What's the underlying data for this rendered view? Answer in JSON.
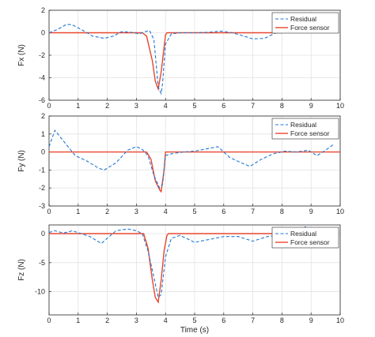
{
  "chart_data": [
    {
      "type": "line",
      "ylabel": "Fx (N)",
      "xlabel": "",
      "xlim": [
        0,
        10
      ],
      "ylim": [
        -6,
        2
      ],
      "xticks": [
        0,
        1,
        2,
        3,
        4,
        5,
        6,
        7,
        8,
        9,
        10
      ],
      "yticks": [
        -6,
        -4,
        -2,
        0,
        2
      ],
      "grid": true,
      "legend_position": "top-right",
      "series": [
        {
          "name": "Residual",
          "style": "dashed",
          "color": "#1f77d4",
          "x": [
            0,
            0.3,
            0.6,
            0.8,
            1.1,
            1.5,
            1.9,
            2.2,
            2.5,
            2.8,
            3.1,
            3.3,
            3.45,
            3.6,
            3.75,
            3.85,
            3.9,
            4.0,
            4.2,
            4.5,
            5.0,
            5.5,
            5.9,
            6.3,
            6.7,
            7.0,
            7.4,
            7.8
          ],
          "y": [
            0,
            0.3,
            0.75,
            0.7,
            0.3,
            -0.3,
            -0.5,
            -0.3,
            0.1,
            0.05,
            -0.1,
            0.1,
            0.2,
            -0.6,
            -4.8,
            -5.4,
            -4.5,
            -1.0,
            -0.1,
            0.0,
            0.0,
            0.05,
            0.15,
            0.0,
            -0.3,
            -0.55,
            -0.5,
            0.0
          ]
        },
        {
          "name": "Force sensor",
          "style": "solid",
          "color": "#e8472e",
          "x": [
            0,
            3.2,
            3.35,
            3.55,
            3.65,
            3.75,
            3.85,
            4.0,
            4.05,
            8.0
          ],
          "y": [
            0,
            0,
            -0.3,
            -2.5,
            -4.3,
            -5.0,
            -3.5,
            -0.2,
            0,
            0
          ]
        }
      ]
    },
    {
      "type": "line",
      "ylabel": "Fy (N)",
      "xlabel": "",
      "xlim": [
        0,
        10
      ],
      "ylim": [
        -3,
        2
      ],
      "xticks": [
        0,
        1,
        2,
        3,
        4,
        5,
        6,
        7,
        8,
        9,
        10
      ],
      "yticks": [
        -3,
        -2,
        -1,
        0,
        1,
        2
      ],
      "grid": true,
      "legend_position": "top-right",
      "series": [
        {
          "name": "Residual",
          "style": "dashed",
          "color": "#1f77d4",
          "x": [
            0,
            0.2,
            0.5,
            0.9,
            1.3,
            1.7,
            1.9,
            2.3,
            2.7,
            3.0,
            3.2,
            3.4,
            3.6,
            3.8,
            3.9,
            4.0,
            4.2,
            4.6,
            5.0,
            5.5,
            5.8,
            6.2,
            6.6,
            6.9,
            7.3,
            7.7,
            8.1,
            8.5,
            8.9,
            9.2,
            9.5,
            9.8
          ],
          "y": [
            0.3,
            1.2,
            0.6,
            -0.2,
            -0.5,
            -0.9,
            -1.0,
            -0.6,
            0.1,
            0.3,
            0.15,
            -0.2,
            -1.3,
            -2.0,
            -1.8,
            -0.2,
            -0.1,
            0.0,
            0.05,
            0.2,
            0.3,
            -0.3,
            -0.6,
            -0.8,
            -0.4,
            -0.1,
            0.05,
            0.0,
            0.1,
            -0.2,
            0.1,
            0.45
          ]
        },
        {
          "name": "Force sensor",
          "style": "solid",
          "color": "#e8472e",
          "x": [
            0,
            3.35,
            3.5,
            3.65,
            3.8,
            3.85,
            3.95,
            4.0,
            10
          ],
          "y": [
            0,
            0,
            -0.4,
            -1.6,
            -2.1,
            -2.2,
            -1.0,
            0,
            0
          ]
        }
      ]
    },
    {
      "type": "line",
      "ylabel": "Fz (N)",
      "xlabel": "Time (s)",
      "xlim": [
        0,
        10
      ],
      "ylim": [
        -14,
        1.5
      ],
      "xticks": [
        0,
        1,
        2,
        3,
        4,
        5,
        6,
        7,
        8,
        9,
        10
      ],
      "yticks": [
        -10,
        -5,
        0
      ],
      "grid": true,
      "legend_position": "top-right",
      "series": [
        {
          "name": "Residual",
          "style": "dashed",
          "color": "#1f77d4",
          "x": [
            0,
            0.2,
            0.5,
            0.8,
            1.1,
            1.4,
            1.8,
            2.0,
            2.3,
            2.7,
            3.0,
            3.2,
            3.4,
            3.6,
            3.75,
            3.85,
            4.0,
            4.2,
            4.5,
            5.0,
            5.5,
            6.0,
            6.5,
            7.0,
            7.5,
            8.0,
            8.5,
            8.8,
            9.0
          ],
          "y": [
            0.2,
            0.5,
            0.1,
            0.5,
            0.0,
            -0.5,
            -1.7,
            -0.8,
            0.5,
            0.8,
            0.5,
            0.0,
            -3.0,
            -7.5,
            -11.0,
            -10.5,
            -4.0,
            -0.8,
            -0.3,
            -1.5,
            -1.0,
            -0.5,
            -0.5,
            -1.3,
            -0.5,
            -0.2,
            0.0,
            1.2,
            0.3
          ]
        },
        {
          "name": "Force sensor",
          "style": "solid",
          "color": "#e8472e",
          "x": [
            0,
            3.25,
            3.4,
            3.55,
            3.65,
            3.75,
            3.85,
            3.95,
            4.05,
            4.1,
            8.7
          ],
          "y": [
            0,
            0,
            -2.5,
            -8.0,
            -11.0,
            -11.8,
            -8.0,
            -3.0,
            -0.3,
            0,
            0
          ]
        }
      ]
    }
  ],
  "legend": {
    "residual_label": "Residual",
    "force_label": "Force sensor"
  }
}
